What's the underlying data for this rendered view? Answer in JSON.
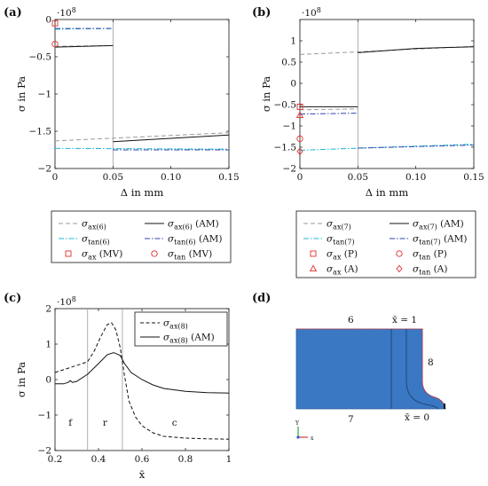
{
  "colors": {
    "grey_dash": "#9a9a9a",
    "black": "#111111",
    "cyan_dashdot": "#1ab5d6",
    "blue_dashdot": "#3046a8",
    "marker_red": "#e0302c",
    "domain_blue": "#3a78c3",
    "domain_border_red": "#d63a3a"
  },
  "chart_data": [
    {
      "id": "a",
      "panel_label": "(a)",
      "type": "line",
      "xlabel": "Δ in mm",
      "ylabel": "σ in Pa",
      "exponent": "·10",
      "exponent_power": "8",
      "xlim": [
        0,
        0.15
      ],
      "ylim": [
        -2,
        0
      ],
      "xticks": [
        0,
        0.05,
        0.1,
        0.15
      ],
      "xtick_labels": [
        "0",
        "0.05",
        "0.10",
        "0.15"
      ],
      "yticks": [
        -2,
        -1.5,
        -1,
        -0.5,
        0
      ],
      "ytick_labels": [
        "−2",
        "−1.5",
        "−1",
        "−0.5",
        "0"
      ],
      "vline_x": 0.05,
      "grid": false,
      "series": [
        {
          "name": "σax(6)",
          "label": "σ",
          "sub": "ax(6)",
          "suffix": "",
          "style": "grey_dash",
          "segments": [
            [
              [
                0,
                -0.36
              ],
              [
                0.05,
                -0.35
              ]
            ],
            [
              [
                0,
                -1.63
              ],
              [
                0.15,
                -1.52
              ]
            ]
          ]
        },
        {
          "name": "σax(6) (AM)",
          "label": "σ",
          "sub": "ax(6)",
          "suffix": " (AM)",
          "style": "black",
          "segments": [
            [
              [
                0,
                -0.37
              ],
              [
                0.05,
                -0.35
              ]
            ],
            [
              [
                0.05,
                -1.64
              ],
              [
                0.15,
                -1.55
              ]
            ]
          ]
        },
        {
          "name": "σtan(6)",
          "label": "σ",
          "sub": "tan(6)",
          "suffix": "",
          "style": "cyan_dashdot",
          "segments": [
            [
              [
                0,
                -0.13
              ],
              [
                0.05,
                -0.12
              ]
            ],
            [
              [
                0,
                -1.73
              ],
              [
                0.15,
                -1.74
              ]
            ]
          ]
        },
        {
          "name": "σtan(6) (AM)",
          "label": "σ",
          "sub": "tan(6)",
          "suffix": " (AM)",
          "style": "blue_dashdot",
          "segments": [
            [
              [
                0,
                -0.12
              ],
              [
                0.05,
                -0.12
              ]
            ],
            [
              [
                0.05,
                -1.75
              ],
              [
                0.15,
                -1.75
              ]
            ]
          ]
        }
      ],
      "markers": [
        {
          "name": "σax (MV)",
          "label": "σ",
          "sub": "ax",
          "suffix": " (MV)",
          "shape": "square",
          "x": 0,
          "y": -0.05
        },
        {
          "name": "σtan (MV)",
          "label": "σ",
          "sub": "tan",
          "suffix": " (MV)",
          "shape": "circle",
          "x": 0,
          "y": -0.33
        }
      ]
    },
    {
      "id": "b",
      "panel_label": "(b)",
      "type": "line",
      "xlabel": "Δ in mm",
      "ylabel": "σ in Pa",
      "exponent": "·10",
      "exponent_power": "8",
      "xlim": [
        0,
        0.15
      ],
      "ylim": [
        -2,
        1.5
      ],
      "xticks": [
        0,
        0.05,
        0.1,
        0.15
      ],
      "xtick_labels": [
        "0",
        "0.05",
        "0.10",
        "0.15"
      ],
      "yticks": [
        -2,
        -1.5,
        -1,
        -0.5,
        0,
        0.5,
        1
      ],
      "ytick_labels": [
        "−2",
        "−1.5",
        "−1",
        "−0.5",
        "0",
        "0.5",
        "1"
      ],
      "vline_x": 0.05,
      "grid": false,
      "series": [
        {
          "name": "σax(7)",
          "label": "σ",
          "sub": "ax(7)",
          "suffix": "",
          "style": "grey_dash",
          "segments": [
            [
              [
                0,
                0.68
              ],
              [
                0.05,
                0.74
              ],
              [
                0.15,
                0.87
              ]
            ],
            [
              [
                0,
                -0.62
              ],
              [
                0.05,
                -0.6
              ]
            ]
          ]
        },
        {
          "name": "σax(7) (AM)",
          "label": "σ",
          "sub": "ax(7)",
          "suffix": " (AM)",
          "style": "black",
          "segments": [
            [
              [
                0.05,
                0.72
              ],
              [
                0.1,
                0.82
              ],
              [
                0.15,
                0.86
              ]
            ],
            [
              [
                0,
                -0.55
              ],
              [
                0.05,
                -0.55
              ]
            ]
          ]
        },
        {
          "name": "σtan(7)",
          "label": "σ",
          "sub": "tan(7)",
          "suffix": "",
          "style": "cyan_dashdot",
          "segments": [
            [
              [
                0,
                -1.57
              ],
              [
                0.15,
                -1.43
              ]
            ]
          ]
        },
        {
          "name": "σtan(7) (AM)",
          "label": "σ",
          "sub": "tan(7)",
          "suffix": " (AM)",
          "style": "blue_dashdot",
          "segments": [
            [
              [
                0,
                -0.72
              ],
              [
                0.05,
                -0.7
              ]
            ],
            [
              [
                0.05,
                -1.52
              ],
              [
                0.15,
                -1.45
              ]
            ]
          ]
        }
      ],
      "markers": [
        {
          "name": "σax (P)",
          "label": "σ",
          "sub": "ax",
          "suffix": " (P)",
          "shape": "square",
          "x": 0,
          "y": -0.55
        },
        {
          "name": "σtan (P)",
          "label": "σ",
          "sub": "tan",
          "suffix": " (P)",
          "shape": "circle",
          "x": 0,
          "y": -1.3
        },
        {
          "name": "σax (A)",
          "label": "σ",
          "sub": "ax",
          "suffix": " (A)",
          "shape": "triangle",
          "x": 0,
          "y": -0.75
        },
        {
          "name": "σtan (A)",
          "label": "σ",
          "sub": "tan",
          "suffix": " (A)",
          "shape": "diamond",
          "x": 0,
          "y": -1.6
        }
      ]
    },
    {
      "id": "c",
      "panel_label": "(c)",
      "type": "line",
      "xlabel": "x̄",
      "ylabel": "σ in Pa",
      "exponent": "·10",
      "exponent_power": "8",
      "xlim": [
        0.2,
        1
      ],
      "ylim": [
        -2,
        2
      ],
      "xticks": [
        0.2,
        0.4,
        0.6,
        0.8,
        1
      ],
      "xtick_labels": [
        "0.2",
        "0.4",
        "0.6",
        "0.8",
        "1"
      ],
      "yticks": [
        -2,
        -1,
        0,
        1,
        2
      ],
      "ytick_labels": [
        "−2",
        "−1",
        "0",
        "1",
        "2"
      ],
      "vlines_x": [
        0.35,
        0.51
      ],
      "grid": false,
      "legend_position": "top-right",
      "region_labels": [
        {
          "text": "f",
          "x": 0.27,
          "y": -1.3
        },
        {
          "text": "r",
          "x": 0.43,
          "y": -1.3
        },
        {
          "text": "c",
          "x": 0.75,
          "y": -1.3
        }
      ],
      "series": [
        {
          "name": "σax(8)",
          "label": "σ",
          "sub": "ax(8)",
          "suffix": "",
          "style": "black_dash",
          "points": [
            [
              0.2,
              0.2
            ],
            [
              0.25,
              0.3
            ],
            [
              0.3,
              0.4
            ],
            [
              0.35,
              0.5
            ],
            [
              0.38,
              0.8
            ],
            [
              0.41,
              1.2
            ],
            [
              0.44,
              1.55
            ],
            [
              0.46,
              1.6
            ],
            [
              0.48,
              1.4
            ],
            [
              0.5,
              0.9
            ],
            [
              0.52,
              0.1
            ],
            [
              0.54,
              -0.6
            ],
            [
              0.57,
              -1.05
            ],
            [
              0.6,
              -1.3
            ],
            [
              0.65,
              -1.5
            ],
            [
              0.7,
              -1.6
            ],
            [
              0.8,
              -1.65
            ],
            [
              0.9,
              -1.67
            ],
            [
              1.0,
              -1.68
            ]
          ]
        },
        {
          "name": "σax(8) (AM)",
          "label": "σ",
          "sub": "ax(8)",
          "suffix": " (AM)",
          "style": "black",
          "points": [
            [
              0.2,
              -0.12
            ],
            [
              0.24,
              -0.12
            ],
            [
              0.26,
              -0.08
            ],
            [
              0.27,
              -0.03
            ],
            [
              0.28,
              -0.08
            ],
            [
              0.3,
              -0.05
            ],
            [
              0.35,
              0.15
            ],
            [
              0.4,
              0.45
            ],
            [
              0.44,
              0.7
            ],
            [
              0.47,
              0.76
            ],
            [
              0.5,
              0.68
            ],
            [
              0.52,
              0.45
            ],
            [
              0.55,
              0.2
            ],
            [
              0.6,
              0.0
            ],
            [
              0.65,
              -0.15
            ],
            [
              0.7,
              -0.25
            ],
            [
              0.8,
              -0.33
            ],
            [
              0.9,
              -0.37
            ],
            [
              1.0,
              -0.38
            ]
          ]
        }
      ]
    }
  ],
  "diagram_d": {
    "panel_label": "(d)",
    "labels": {
      "edge6": "6",
      "edge7": "7",
      "edge8": "8",
      "xbar_one": "x̄ = 1",
      "xbar_zero": "x̄ = 0",
      "axis_y": "Y",
      "axis_x": "x"
    }
  }
}
